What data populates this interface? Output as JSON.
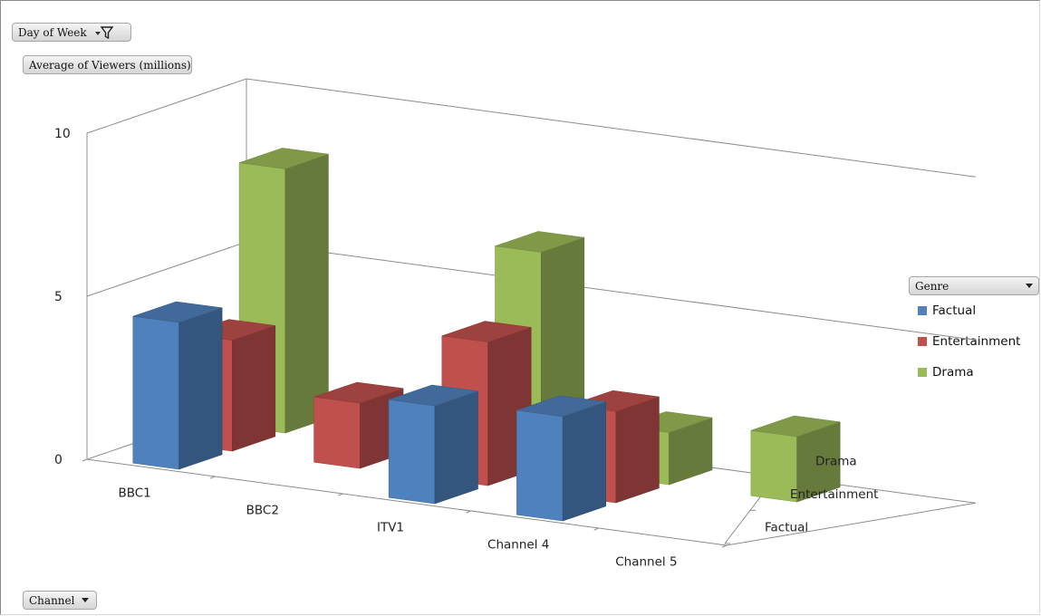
{
  "filters": {
    "report_filter": "Day of Week",
    "values_field": "Average of Viewers (millions)",
    "axis_field": "Channel",
    "legend_field": "Genre"
  },
  "colors": {
    "Factual": "#4f81bd",
    "Entertainment": "#c0504d",
    "Drama": "#9bbb59"
  },
  "icons": {
    "filter": "funnel-filter-icon",
    "dropdown": "chevron-down-icon"
  },
  "legend": {
    "items": [
      "Factual",
      "Entertainment",
      "Drama"
    ]
  },
  "chart_data": {
    "type": "bar",
    "subtype": "3d-column",
    "categories": [
      "BBC1",
      "BBC2",
      "ITV1",
      "Channel 4",
      "Channel 5"
    ],
    "depth_categories": [
      "Factual",
      "Entertainment",
      "Drama"
    ],
    "series": [
      {
        "name": "Factual",
        "values": [
          4.5,
          null,
          3.0,
          3.2,
          null
        ]
      },
      {
        "name": "Entertainment",
        "values": [
          3.4,
          2.0,
          4.4,
          2.8,
          null
        ]
      },
      {
        "name": "Drama",
        "values": [
          8.1,
          null,
          6.6,
          1.6,
          2.0
        ]
      }
    ],
    "y_ticks": [
      "0",
      "5",
      "10"
    ],
    "ylim": [
      0,
      10
    ],
    "grid": true,
    "legend_position": "right"
  }
}
